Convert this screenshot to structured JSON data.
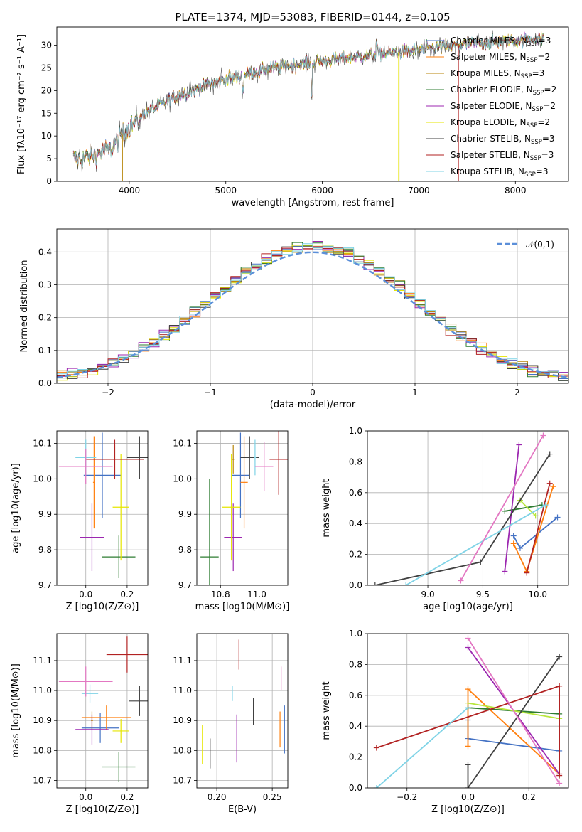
{
  "chart_data": [
    {
      "id": "spectrum",
      "type": "line",
      "title": "PLATE=1374, MJD=53083, FIBERID=0144, z=0.105",
      "xlabel": "wavelength [Angstrom, rest frame]",
      "ylabel": "Flux [fλ10⁻¹⁷ erg cm⁻² s⁻¹ A⁻¹]",
      "xlim": [
        3250,
        8550
      ],
      "ylim": [
        0,
        34
      ],
      "xticks": [
        4000,
        5000,
        6000,
        7000,
        8000
      ],
      "yticks": [
        0,
        5,
        10,
        15,
        20,
        25,
        30
      ],
      "grid": false,
      "legend_position": "right",
      "continuum": [
        [
          3420,
          5.0
        ],
        [
          3500,
          5.0
        ],
        [
          3800,
          7.0
        ],
        [
          4000,
          12.0
        ],
        [
          4200,
          15.5
        ],
        [
          4500,
          19.0
        ],
        [
          5000,
          22.5
        ],
        [
          5500,
          25.0
        ],
        [
          6000,
          26.5
        ],
        [
          6500,
          27.8
        ],
        [
          7000,
          29.0
        ],
        [
          7500,
          30.3
        ],
        [
          8000,
          31.0
        ],
        [
          8300,
          31.5
        ]
      ],
      "series": [
        {
          "name": "Chabrier MILES, N_SSP=3",
          "color": "#4472c4"
        },
        {
          "name": "Salpeter MILES, N_SSP=2",
          "color": "#ff7f0e"
        },
        {
          "name": "Kroupa MILES, N_SSP=3",
          "color": "#b8860b"
        },
        {
          "name": "Chabrier ELODIE, N_SSP=2",
          "color": "#2e7d32"
        },
        {
          "name": "Salpeter ELODIE, N_SSP=2",
          "color": "#9c27b0"
        },
        {
          "name": "Kroupa ELODIE, N_SSP=2",
          "color": "#e6e600"
        },
        {
          "name": "Chabrier STELIB, N_SSP=3",
          "color": "#404040"
        },
        {
          "name": "Salpeter STELIB, N_SSP=3",
          "color": "#b22222"
        },
        {
          "name": "Kroupa STELIB, N_SSP=3",
          "color": "#7fd3e6"
        }
      ],
      "drops": [
        [
          3930,
          "#b8860b"
        ],
        [
          6790,
          "#e6e600"
        ],
        [
          6795,
          "#b8860b"
        ],
        [
          7410,
          "#b22222"
        ]
      ],
      "legend_entries": [
        {
          "main": "Chabrier MILES, N",
          "sub": "SSP",
          "tail": "=3",
          "color": "#4472c4"
        },
        {
          "main": "Salpeter MILES, N",
          "sub": "SSP",
          "tail": "=2",
          "color": "#ff7f0e"
        },
        {
          "main": "Kroupa MILES, N",
          "sub": "SSP",
          "tail": "=3",
          "color": "#b8860b"
        },
        {
          "main": "Chabrier ELODIE, N",
          "sub": "SSP",
          "tail": "=2",
          "color": "#2e7d32"
        },
        {
          "main": "Salpeter ELODIE, N",
          "sub": "SSP",
          "tail": "=2",
          "color": "#9c27b0"
        },
        {
          "main": "Kroupa ELODIE, N",
          "sub": "SSP",
          "tail": "=2",
          "color": "#e6e600"
        },
        {
          "main": "Chabrier STELIB, N",
          "sub": "SSP",
          "tail": "=3",
          "color": "#404040"
        },
        {
          "main": "Salpeter STELIB, N",
          "sub": "SSP",
          "tail": "=3",
          "color": "#b22222"
        },
        {
          "main": "Kroupa STELIB, N",
          "sub": "SSP",
          "tail": "=3",
          "color": "#7fd3e6"
        }
      ]
    },
    {
      "id": "residuals",
      "type": "step",
      "xlabel": "(data-model)/error",
      "ylabel": "Normed distribution",
      "xlim": [
        -2.5,
        2.5
      ],
      "ylim": [
        0,
        0.47
      ],
      "xticks": [
        -2,
        -1,
        0,
        1,
        2
      ],
      "yticks": [
        0.0,
        0.1,
        0.2,
        0.3,
        0.4
      ],
      "grid": true,
      "bin_width": 0.1,
      "reference": {
        "name": "𝒩(0,1)",
        "color": "#5b8fd9",
        "style": "dashed"
      },
      "colors": [
        "#4472c4",
        "#ff7f0e",
        "#b8860b",
        "#2e7d32",
        "#9c27b0",
        "#e6e600",
        "#404040",
        "#b22222",
        "#7fd3e6"
      ]
    },
    {
      "id": "age-vs-z",
      "type": "errorbar",
      "xlabel": "Z [log10(Z/Z⊙)]",
      "ylabel": "age [log10(age/yr)]",
      "xlim": [
        -0.14,
        0.3
      ],
      "ylim": [
        9.7,
        10.135
      ],
      "xticks": [
        0.0,
        0.2
      ],
      "yticks": [
        9.7,
        9.8,
        9.9,
        10.0,
        10.1
      ],
      "grid": true,
      "points": [
        {
          "x": 0.08,
          "xerr": 0.09,
          "y": 10.01,
          "yerr": 0.12,
          "color": "#4472c4"
        },
        {
          "x": 0.04,
          "xerr": 0.005,
          "y": 9.99,
          "yerr": 0.13,
          "color": "#ff7f0e"
        },
        {
          "x": 0.14,
          "xerr": 0.06,
          "y": 10.055,
          "yerr": 0.04,
          "color": "#b8860b"
        },
        {
          "x": 0.16,
          "xerr": 0.08,
          "y": 9.78,
          "yerr": 0.06,
          "color": "#2e7d32"
        },
        {
          "x": 0.03,
          "xerr": 0.06,
          "y": 9.835,
          "yerr": 0.095,
          "color": "#9c27b0"
        },
        {
          "x": 0.17,
          "xerr": 0.04,
          "y": 9.92,
          "yerr": 0.15,
          "color": "#e6e600"
        },
        {
          "x": 0.26,
          "xerr": 0.06,
          "y": 10.06,
          "yerr": 0.06,
          "color": "#404040"
        },
        {
          "x": 0.14,
          "xerr": 0.14,
          "y": 10.055,
          "yerr": 0.055,
          "color": "#b22222"
        },
        {
          "x": 0.0,
          "xerr": 0.05,
          "y": 10.06,
          "yerr": 0.05,
          "color": "#7fd3e6"
        },
        {
          "x": 0.0,
          "xerr": 0.13,
          "y": 10.035,
          "yerr": 0.05,
          "color": "#e377c2"
        }
      ]
    },
    {
      "id": "age-vs-mass",
      "type": "errorbar",
      "xlabel": "mass [log10(M/M⊙)]",
      "ylabel": "",
      "xlim": [
        10.67,
        11.17
      ],
      "ylim": [
        9.7,
        10.135
      ],
      "xticks": [
        10.8,
        11.0
      ],
      "yticks": [
        9.7,
        9.8,
        9.9,
        10.0,
        10.1
      ],
      "grid": true,
      "points": [
        {
          "x": 10.91,
          "xerr": 0.05,
          "y": 10.01,
          "yerr": 0.12,
          "color": "#4472c4"
        },
        {
          "x": 10.93,
          "xerr": 0.02,
          "y": 9.99,
          "yerr": 0.13,
          "color": "#ff7f0e"
        },
        {
          "x": 10.87,
          "xerr": 0.005,
          "y": 10.055,
          "yerr": 0.04,
          "color": "#b8860b"
        },
        {
          "x": 10.74,
          "xerr": 0.05,
          "y": 9.78,
          "yerr": 0.22,
          "color": "#2e7d32"
        },
        {
          "x": 10.87,
          "xerr": 0.05,
          "y": 9.835,
          "yerr": 0.095,
          "color": "#9c27b0"
        },
        {
          "x": 10.86,
          "xerr": 0.05,
          "y": 9.92,
          "yerr": 0.15,
          "color": "#e6e600"
        },
        {
          "x": 10.96,
          "xerr": 0.05,
          "y": 10.06,
          "yerr": 0.06,
          "color": "#404040"
        },
        {
          "x": 11.12,
          "xerr": 0.05,
          "y": 10.055,
          "yerr": 0.1,
          "color": "#b22222"
        },
        {
          "x": 10.99,
          "xerr": 0.005,
          "y": 10.06,
          "yerr": 0.05,
          "color": "#7fd3e6"
        },
        {
          "x": 11.04,
          "xerr": 0.05,
          "y": 10.035,
          "yerr": 0.07,
          "color": "#e377c2"
        }
      ]
    },
    {
      "id": "weight-vs-age",
      "type": "line",
      "xlabel": "age [log10(age/yr)]",
      "ylabel": "mass weight",
      "xlim": [
        8.45,
        10.28
      ],
      "ylim": [
        0.0,
        1.0
      ],
      "xticks": [
        9.0,
        9.5,
        10.0
      ],
      "yticks": [
        0.0,
        0.2,
        0.4,
        0.6,
        0.8,
        1.0
      ],
      "grid": true,
      "series": [
        {
          "color": "#4472c4",
          "points": [
            [
              9.78,
              0.32
            ],
            [
              9.84,
              0.24
            ],
            [
              10.18,
              0.44
            ]
          ]
        },
        {
          "color": "#ff7f0e",
          "points": [
            [
              9.78,
              0.27
            ],
            [
              9.9,
              0.09
            ],
            [
              10.14,
              0.64
            ]
          ]
        },
        {
          "color": "#2e7d32",
          "points": [
            [
              9.7,
              0.48
            ],
            [
              10.04,
              0.52
            ]
          ]
        },
        {
          "color": "#9c27b0",
          "points": [
            [
              9.7,
              0.09
            ],
            [
              9.83,
              0.91
            ]
          ]
        },
        {
          "color": "#b8e63c",
          "points": [
            [
              9.84,
              0.55
            ],
            [
              9.98,
              0.45
            ]
          ]
        },
        {
          "color": "#404040",
          "points": [
            [
              8.52,
              0.0
            ],
            [
              9.48,
              0.15
            ],
            [
              10.11,
              0.85
            ]
          ]
        },
        {
          "color": "#b22222",
          "points": [
            [
              9.9,
              0.08
            ],
            [
              10.11,
              0.66
            ]
          ]
        },
        {
          "color": "#7fd3e6",
          "points": [
            [
              8.8,
              0.0
            ],
            [
              10.07,
              0.52
            ]
          ]
        },
        {
          "color": "#e377c2",
          "points": [
            [
              9.3,
              0.03
            ],
            [
              10.05,
              0.97
            ]
          ]
        }
      ]
    },
    {
      "id": "mass-vs-z",
      "type": "errorbar",
      "xlabel": "Z [log10(Z/Z⊙)]",
      "ylabel": "mass [log10(M/M⊙)]",
      "xlim": [
        -0.14,
        0.3
      ],
      "ylim": [
        10.675,
        11.19
      ],
      "xticks": [
        0.0,
        0.2
      ],
      "yticks": [
        10.7,
        10.8,
        10.9,
        11.0,
        11.1
      ],
      "grid": true,
      "points": [
        {
          "x": 0.07,
          "xerr": 0.09,
          "y": 10.875,
          "yerr": 0.05,
          "color": "#4472c4"
        },
        {
          "x": 0.1,
          "xerr": 0.12,
          "y": 10.91,
          "yerr": 0.04,
          "color": "#ff7f0e"
        },
        {
          "x": 0.03,
          "xerr": 0.005,
          "y": 10.9,
          "yerr": 0.03,
          "color": "#b8860b"
        },
        {
          "x": 0.16,
          "xerr": 0.08,
          "y": 10.745,
          "yerr": 0.05,
          "color": "#2e7d32"
        },
        {
          "x": 0.03,
          "xerr": 0.08,
          "y": 10.87,
          "yerr": 0.05,
          "color": "#9c27b0"
        },
        {
          "x": 0.17,
          "xerr": 0.04,
          "y": 10.865,
          "yerr": 0.04,
          "color": "#e6e600"
        },
        {
          "x": 0.26,
          "xerr": 0.05,
          "y": 10.965,
          "yerr": 0.05,
          "color": "#404040"
        },
        {
          "x": 0.2,
          "xerr": 0.1,
          "y": 11.12,
          "yerr": 0.06,
          "color": "#b22222"
        },
        {
          "x": 0.02,
          "xerr": 0.04,
          "y": 10.99,
          "yerr": 0.03,
          "color": "#7fd3e6"
        },
        {
          "x": 0.0,
          "xerr": 0.13,
          "y": 11.03,
          "yerr": 0.05,
          "color": "#e377c2"
        }
      ]
    },
    {
      "id": "mass-vs-ebv",
      "type": "errorbar",
      "xlabel": "E(B-V)",
      "ylabel": "",
      "xlim": [
        0.182,
        0.264
      ],
      "ylim": [
        10.675,
        11.19
      ],
      "xticks": [
        0.2,
        0.25
      ],
      "yticks": [
        10.7,
        10.8,
        10.9,
        11.0,
        11.1
      ],
      "grid": true,
      "points": [
        {
          "x": 0.187,
          "xerr": 0.0,
          "y": 10.82,
          "yerr": 0.065,
          "color": "#e6e600"
        },
        {
          "x": 0.194,
          "xerr": 0.0,
          "y": 10.79,
          "yerr": 0.05,
          "color": "#404040"
        },
        {
          "x": 0.214,
          "xerr": 0.0,
          "y": 10.99,
          "yerr": 0.025,
          "color": "#7fd3e6"
        },
        {
          "x": 0.218,
          "xerr": 0.0,
          "y": 10.84,
          "yerr": 0.08,
          "color": "#9c27b0"
        },
        {
          "x": 0.22,
          "xerr": 0.0,
          "y": 11.12,
          "yerr": 0.05,
          "color": "#b22222"
        },
        {
          "x": 0.233,
          "xerr": 0.0,
          "y": 10.93,
          "yerr": 0.045,
          "color": "#404040"
        },
        {
          "x": 0.257,
          "xerr": 0.0,
          "y": 10.87,
          "yerr": 0.06,
          "color": "#ff7f0e"
        },
        {
          "x": 0.258,
          "xerr": 0.0,
          "y": 11.04,
          "yerr": 0.04,
          "color": "#e377c2"
        },
        {
          "x": 0.261,
          "xerr": 0.0,
          "y": 10.87,
          "yerr": 0.08,
          "color": "#4472c4"
        }
      ]
    },
    {
      "id": "weight-vs-z",
      "type": "line",
      "xlabel": "Z [log10(Z/Z⊙)]",
      "ylabel": "mass weight",
      "xlim": [
        -0.33,
        0.33
      ],
      "ylim": [
        0.0,
        1.0
      ],
      "xticks": [
        -0.2,
        0.0,
        0.2
      ],
      "yticks": [
        0.0,
        0.2,
        0.4,
        0.6,
        0.8,
        1.0
      ],
      "grid": true,
      "series": [
        {
          "color": "#4472c4",
          "points": [
            [
              0.0,
              0.44
            ],
            [
              0.0,
              0.32
            ],
            [
              0.3,
              0.24
            ]
          ]
        },
        {
          "color": "#ff7f0e",
          "points": [
            [
              0.0,
              0.27
            ],
            [
              0.0,
              0.64
            ],
            [
              0.3,
              0.09
            ]
          ]
        },
        {
          "color": "#2e7d32",
          "points": [
            [
              0.0,
              0.52
            ],
            [
              0.3,
              0.48
            ]
          ]
        },
        {
          "color": "#9c27b0",
          "points": [
            [
              0.0,
              0.91
            ],
            [
              0.3,
              0.09
            ]
          ]
        },
        {
          "color": "#b8e63c",
          "points": [
            [
              0.0,
              0.55
            ],
            [
              0.3,
              0.45
            ]
          ]
        },
        {
          "color": "#404040",
          "points": [
            [
              0.0,
              0.15
            ],
            [
              0.0,
              0.0
            ],
            [
              0.3,
              0.85
            ]
          ]
        },
        {
          "color": "#b22222",
          "points": [
            [
              -0.3,
              0.26
            ],
            [
              0.3,
              0.66
            ],
            [
              0.3,
              0.08
            ]
          ]
        },
        {
          "color": "#7fd3e6",
          "points": [
            [
              -0.3,
              0.0
            ],
            [
              0.0,
              0.52
            ]
          ]
        },
        {
          "color": "#e377c2",
          "points": [
            [
              0.0,
              0.97
            ],
            [
              0.3,
              0.03
            ]
          ]
        }
      ]
    }
  ]
}
